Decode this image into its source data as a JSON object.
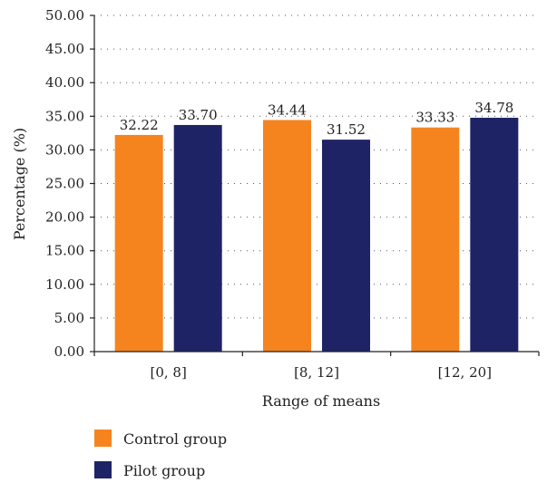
{
  "chart_data": {
    "type": "bar",
    "title": "",
    "xlabel": "Range of means",
    "ylabel": "Percentage (%)",
    "categories": [
      "[0, 8]",
      "[8, 12]",
      "[12, 20]"
    ],
    "series": [
      {
        "name": "Control group",
        "color": "#F5841F",
        "values": [
          32.22,
          34.44,
          33.33
        ]
      },
      {
        "name": "Pilot group",
        "color": "#1E2366",
        "values": [
          33.7,
          31.52,
          34.78
        ]
      }
    ],
    "value_labels": [
      [
        "32.22",
        "34.44",
        "33.33"
      ],
      [
        "33.70",
        "31.52",
        "34.78"
      ]
    ],
    "ylim": [
      0,
      50
    ],
    "yticks": [
      "0.00",
      "5.00",
      "10.00",
      "15.00",
      "20.00",
      "25.00",
      "30.00",
      "35.00",
      "40.00",
      "45.00",
      "50.00"
    ],
    "grid": true,
    "legend_position": "bottom-left"
  }
}
